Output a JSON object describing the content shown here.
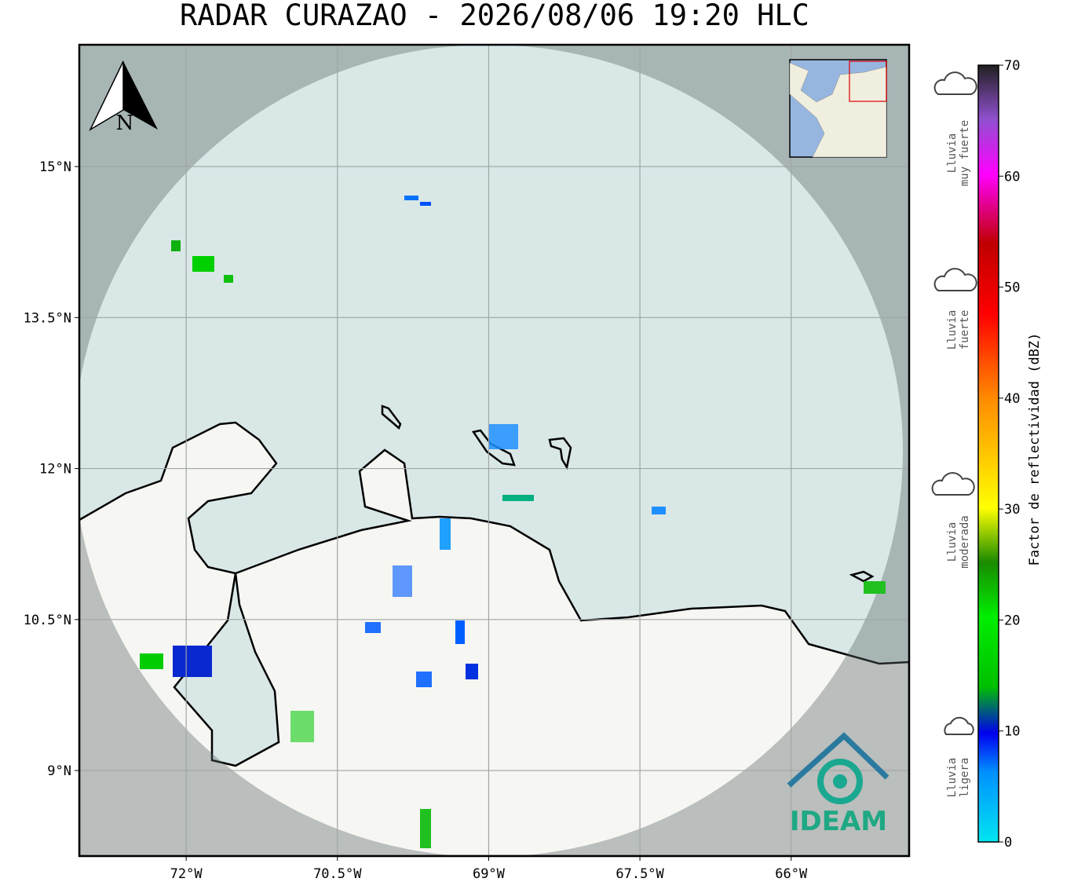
{
  "map": {
    "title": "RADAR CURAZAO - 2026/08/06 19:20 HLC",
    "north": "N",
    "xlim": [
      -73.06,
      -64.83
    ],
    "ylim": [
      8.15,
      16.21
    ],
    "xticks": [
      {
        "value": -72,
        "label": "72°W"
      },
      {
        "value": -70.5,
        "label": "70.5°W"
      },
      {
        "value": -69,
        "label": "69°W"
      },
      {
        "value": -67.5,
        "label": "67.5°W"
      },
      {
        "value": -66,
        "label": "66°W"
      }
    ],
    "yticks": [
      {
        "value": 9,
        "label": "9°N"
      },
      {
        "value": 10.5,
        "label": "10.5°N"
      },
      {
        "value": 12,
        "label": "12°N"
      },
      {
        "value": 13.5,
        "label": "13.5°N"
      },
      {
        "value": 15,
        "label": "15°N"
      }
    ],
    "colorbar": {
      "label": "Factor de reflectividad (dBZ)",
      "lim": [
        0,
        70
      ],
      "ticks": [
        0,
        10,
        20,
        30,
        40,
        50,
        60,
        70
      ]
    },
    "rain_labels": [
      [
        "Lluvia",
        "muy fuerte"
      ],
      [
        "Lluvia",
        "fuerte"
      ],
      [
        "Lluvia",
        "moderada"
      ],
      [
        "Lluvia",
        "ligera"
      ]
    ],
    "logo": "IDEAM"
  }
}
